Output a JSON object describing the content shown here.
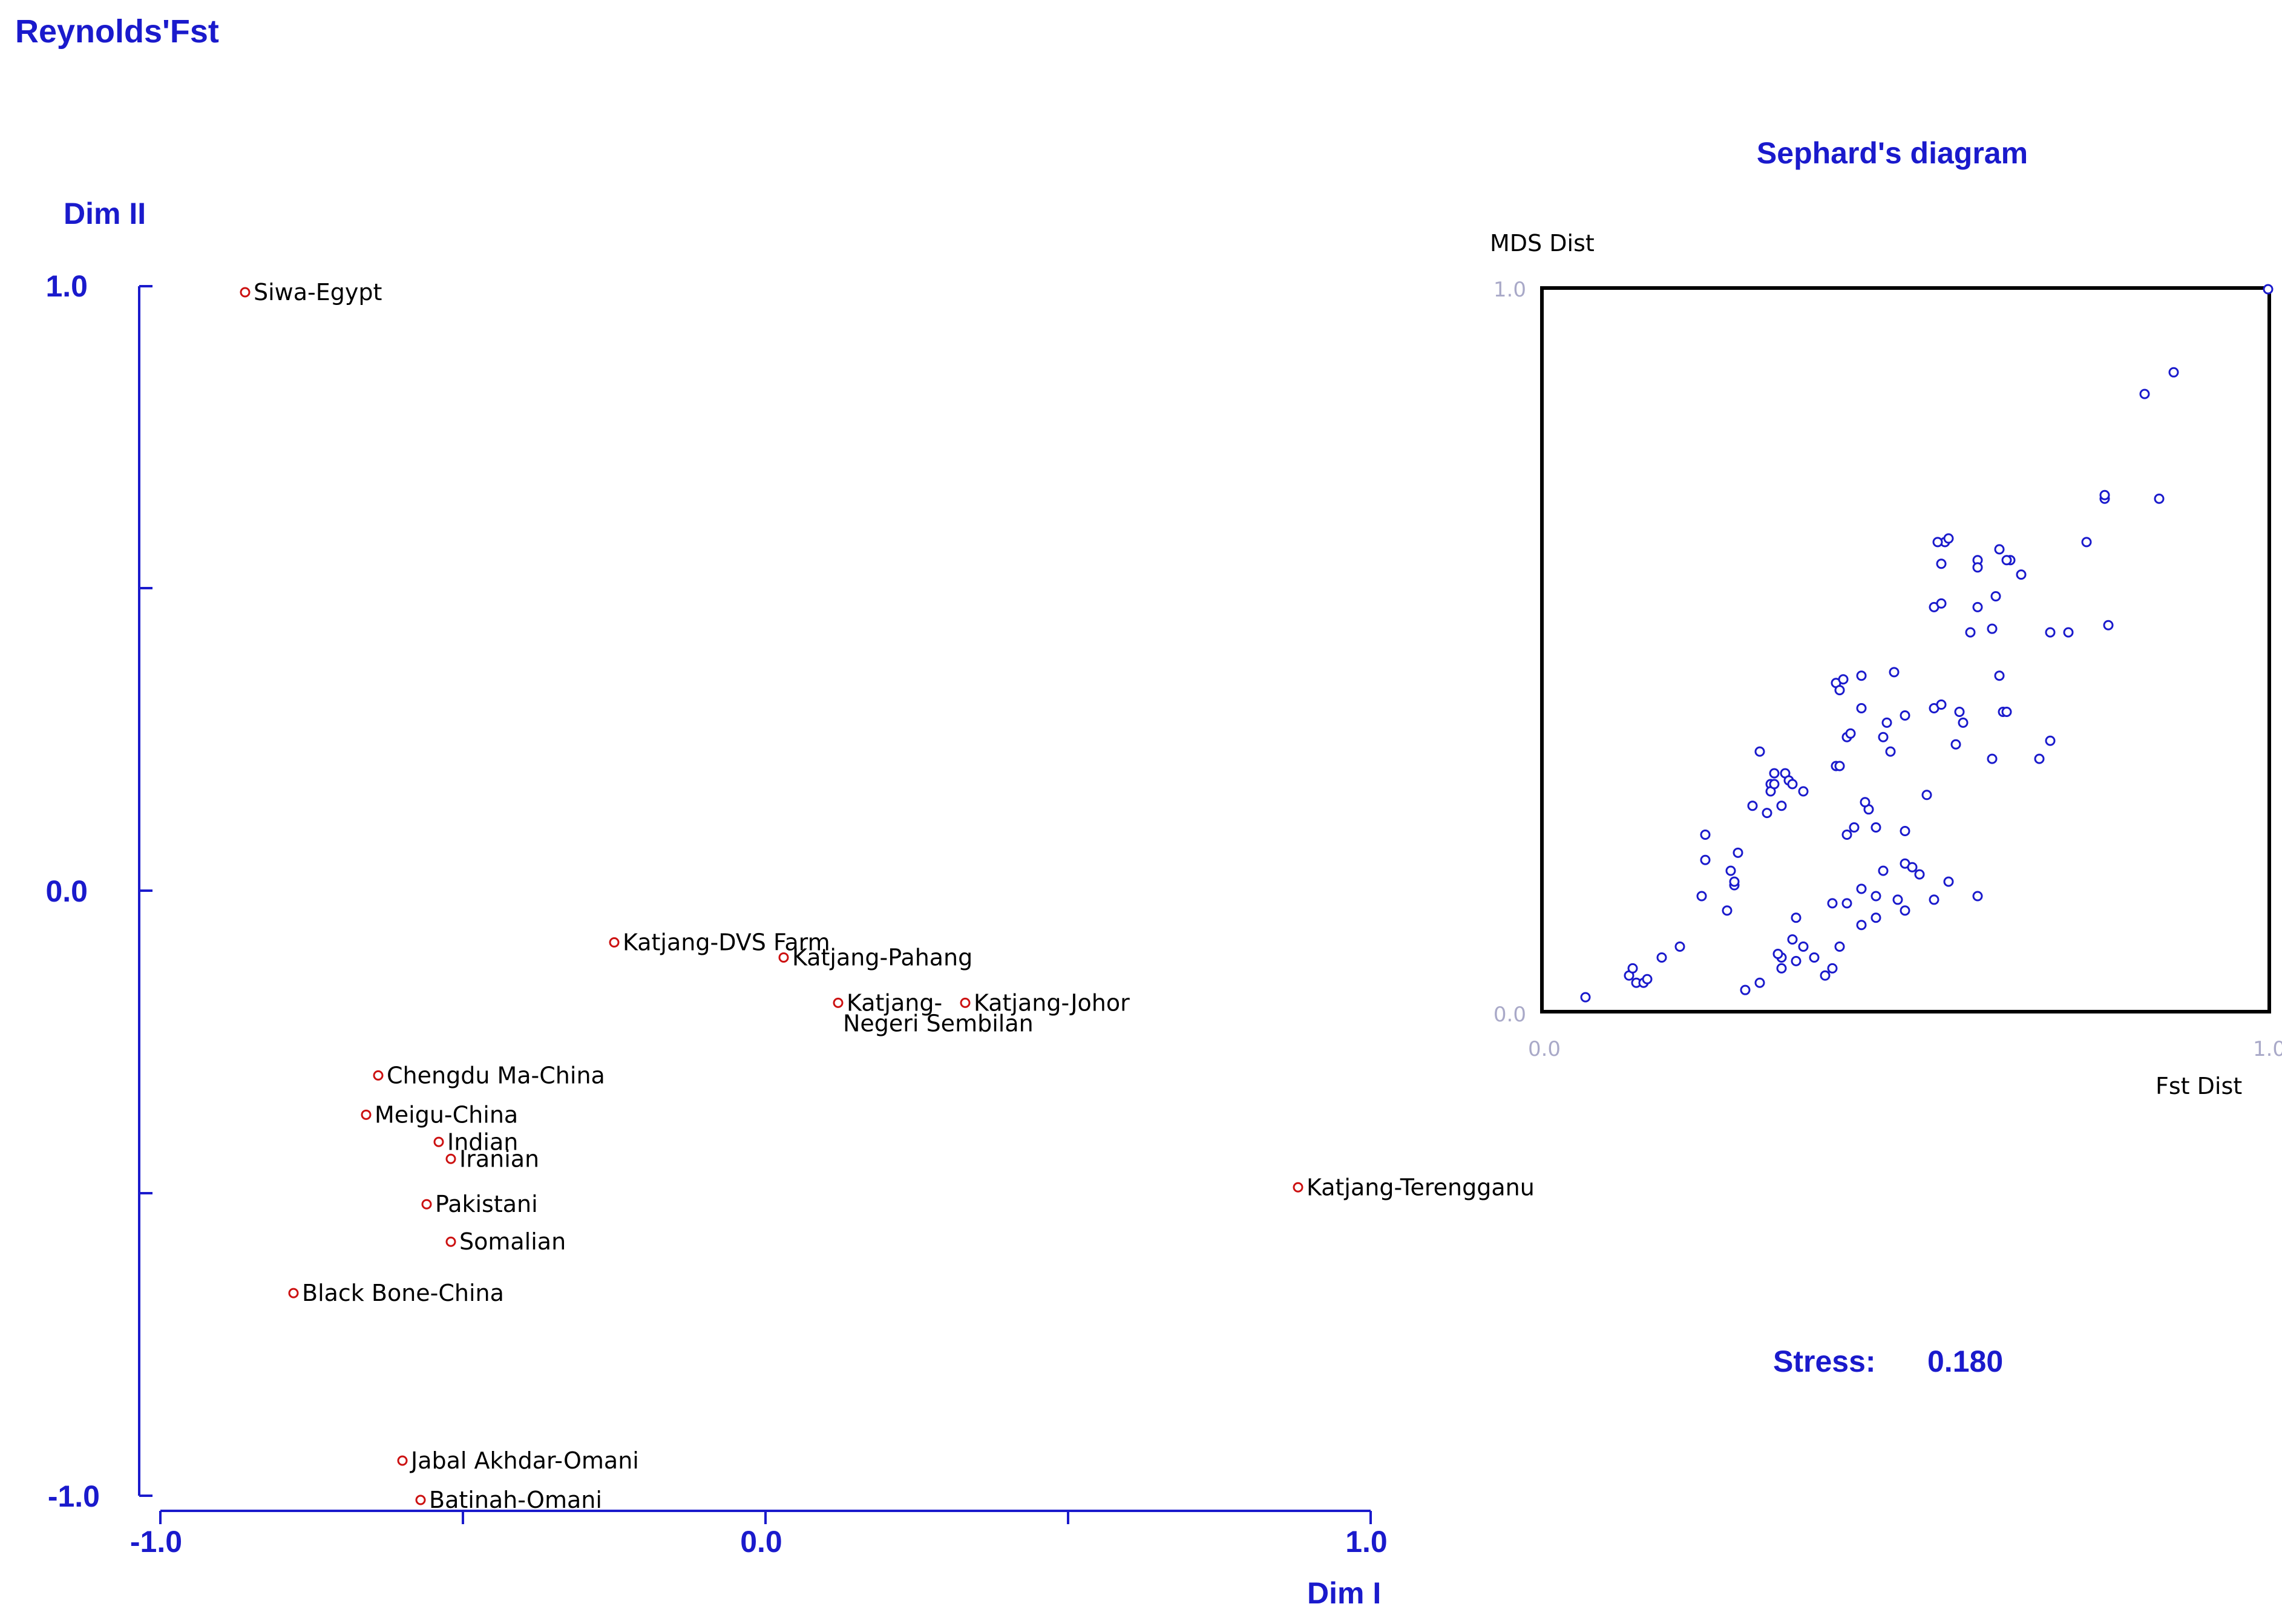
{
  "page_title": "Reynolds'Fst",
  "chart_data": [
    {
      "type": "scatter",
      "title": "",
      "xlabel": "Dim I",
      "ylabel": "Dim II",
      "xlim": [
        -1.0,
        1.0
      ],
      "ylim": [
        -1.0,
        1.0
      ],
      "x_ticks": [
        "-1.0",
        "0.0",
        "1.0"
      ],
      "y_ticks": [
        "1.0",
        "0.0",
        "-1.0"
      ],
      "grid": false,
      "point_color": "#cc1111",
      "points": [
        {
          "label": "Siwa-Egypt",
          "x": -0.86,
          "y": 0.99
        },
        {
          "label": "Katjang-DVS Farm",
          "x": -0.25,
          "y": -0.085
        },
        {
          "label": "Katjang-Pahang",
          "x": 0.03,
          "y": -0.11
        },
        {
          "label": "Katjang-\nNegeri Sembilan",
          "x": 0.12,
          "y": -0.185
        },
        {
          "label": "Katjang-Johor",
          "x": 0.33,
          "y": -0.185
        },
        {
          "label": "Chengdu Ma-China",
          "x": -0.64,
          "y": -0.305
        },
        {
          "label": "Meigu-China",
          "x": -0.66,
          "y": -0.37
        },
        {
          "label": "Indian",
          "x": -0.54,
          "y": -0.415
        },
        {
          "label": "Iranian",
          "x": -0.52,
          "y": -0.443
        },
        {
          "label": "Katjang-Terengganu",
          "x": 0.88,
          "y": -0.49
        },
        {
          "label": "Pakistani",
          "x": -0.56,
          "y": -0.518
        },
        {
          "label": "Somalian",
          "x": -0.52,
          "y": -0.58
        },
        {
          "label": "Black Bone-China",
          "x": -0.78,
          "y": -0.665
        },
        {
          "label": "Jabal Akhdar-Omani",
          "x": -0.6,
          "y": -0.942
        },
        {
          "label": "Batinah-Omani",
          "x": -0.57,
          "y": -1.007
        }
      ]
    },
    {
      "type": "scatter",
      "title": "Sephard's diagram",
      "xlabel": "Fst Dist",
      "ylabel": "MDS Dist",
      "xlim": [
        0.0,
        1.0
      ],
      "ylim": [
        0.0,
        1.0
      ],
      "x_ticks": [
        "0.0",
        "1.0"
      ],
      "y_ticks": [
        "1.0",
        "0.0"
      ],
      "grid": false,
      "point_color": "#1a1acc",
      "x": [
        0.06,
        0.12,
        0.125,
        0.13,
        0.14,
        0.145,
        0.165,
        0.19,
        0.22,
        0.225,
        0.225,
        0.255,
        0.26,
        0.265,
        0.27,
        0.265,
        0.29,
        0.3,
        0.31,
        0.315,
        0.315,
        0.32,
        0.32,
        0.33,
        0.335,
        0.34,
        0.345,
        0.33,
        0.33,
        0.325,
        0.345,
        0.35,
        0.36,
        0.375,
        0.4,
        0.405,
        0.41,
        0.405,
        0.415,
        0.41,
        0.42,
        0.42,
        0.43,
        0.425,
        0.44,
        0.44,
        0.45,
        0.445,
        0.46,
        0.47,
        0.47,
        0.475,
        0.49,
        0.5,
        0.5,
        0.51,
        0.5,
        0.485,
        0.52,
        0.53,
        0.54,
        0.55,
        0.56,
        0.54,
        0.55,
        0.55,
        0.555,
        0.58,
        0.575,
        0.59,
        0.6,
        0.6,
        0.6,
        0.62,
        0.625,
        0.63,
        0.62,
        0.63,
        0.635,
        0.64,
        0.645,
        0.64,
        0.66,
        0.685,
        0.7,
        0.7,
        0.725,
        0.75,
        0.775,
        0.775,
        0.78,
        0.83,
        0.85,
        0.87,
        1.0,
        0.545,
        0.57,
        0.6,
        0.54,
        0.56,
        0.5,
        0.48,
        0.46,
        0.44,
        0.41,
        0.4,
        0.39,
        0.3,
        0.28,
        0.35,
        0.36,
        0.42,
        0.44,
        0.46
      ],
      "y": [
        0.02,
        0.05,
        0.06,
        0.04,
        0.04,
        0.045,
        0.075,
        0.09,
        0.16,
        0.21,
        0.245,
        0.14,
        0.195,
        0.175,
        0.22,
        0.18,
        0.285,
        0.36,
        0.275,
        0.315,
        0.305,
        0.315,
        0.33,
        0.285,
        0.33,
        0.32,
        0.315,
        0.06,
        0.075,
        0.08,
        0.1,
        0.13,
        0.305,
        0.075,
        0.15,
        0.34,
        0.34,
        0.455,
        0.46,
        0.445,
        0.245,
        0.38,
        0.255,
        0.385,
        0.465,
        0.42,
        0.28,
        0.29,
        0.255,
        0.195,
        0.38,
        0.4,
        0.155,
        0.205,
        0.25,
        0.2,
        0.41,
        0.47,
        0.19,
        0.3,
        0.42,
        0.425,
        0.18,
        0.56,
        0.565,
        0.62,
        0.65,
        0.4,
        0.415,
        0.525,
        0.56,
        0.625,
        0.615,
        0.53,
        0.575,
        0.64,
        0.35,
        0.465,
        0.415,
        0.415,
        0.625,
        0.625,
        0.605,
        0.35,
        0.375,
        0.525,
        0.525,
        0.65,
        0.71,
        0.715,
        0.535,
        0.855,
        0.71,
        0.885,
        1.0,
        0.65,
        0.37,
        0.16,
        0.155,
        0.655,
        0.14,
        0.36,
        0.16,
        0.12,
        0.09,
        0.06,
        0.05,
        0.04,
        0.03,
        0.07,
        0.09,
        0.15,
        0.17,
        0.13
      ]
    }
  ],
  "stress": {
    "label": "Stress:",
    "value": "0.180"
  }
}
